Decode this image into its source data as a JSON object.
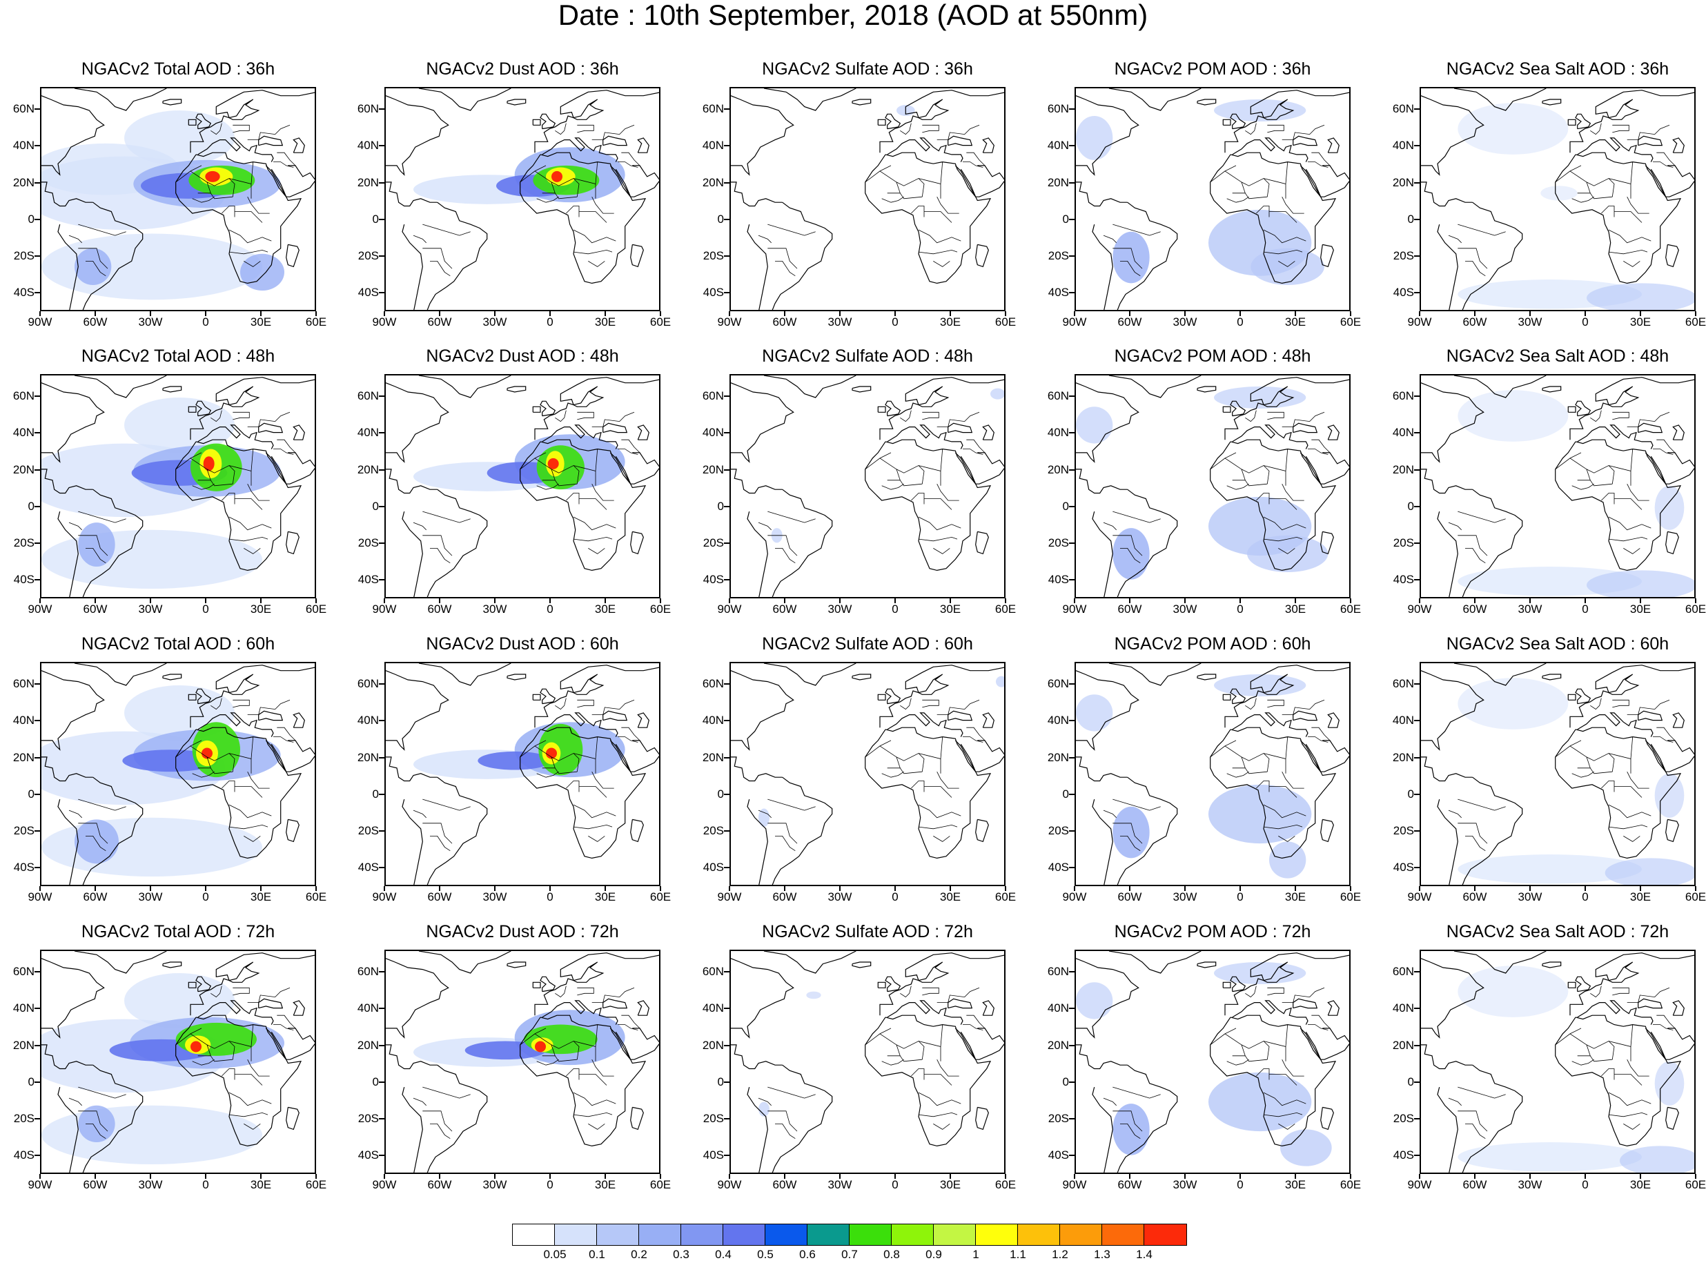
{
  "title": "Date : 10th September, 2018 (AOD at 550nm)",
  "map_axes": {
    "lon_range": [
      -90,
      60
    ],
    "lat_range": [
      -50,
      72
    ],
    "y_ticks": [
      {
        "lat": 60,
        "label": "60N"
      },
      {
        "lat": 40,
        "label": "40N"
      },
      {
        "lat": 20,
        "label": "20N"
      },
      {
        "lat": 0,
        "label": "0"
      },
      {
        "lat": -20,
        "label": "20S"
      },
      {
        "lat": -40,
        "label": "40S"
      }
    ],
    "x_ticks": [
      {
        "lon": -90,
        "label": "90W"
      },
      {
        "lon": -60,
        "label": "60W"
      },
      {
        "lon": -30,
        "label": "30W"
      },
      {
        "lon": 0,
        "label": "0"
      },
      {
        "lon": 30,
        "label": "30E"
      },
      {
        "lon": 60,
        "label": "60E"
      }
    ]
  },
  "panels": [
    {
      "title": "NGACv2 Total AOD : 36h",
      "species": "total",
      "hour": 36
    },
    {
      "title": "NGACv2 Dust AOD : 36h",
      "species": "dust",
      "hour": 36
    },
    {
      "title": "NGACv2 Sulfate AOD : 36h",
      "species": "sulfate",
      "hour": 36
    },
    {
      "title": "NGACv2 POM AOD : 36h",
      "species": "pom",
      "hour": 36
    },
    {
      "title": "NGACv2 Sea Salt AOD : 36h",
      "species": "seasalt",
      "hour": 36
    },
    {
      "title": "NGACv2 Total AOD : 48h",
      "species": "total",
      "hour": 48
    },
    {
      "title": "NGACv2 Dust AOD : 48h",
      "species": "dust",
      "hour": 48
    },
    {
      "title": "NGACv2 Sulfate AOD : 48h",
      "species": "sulfate",
      "hour": 48
    },
    {
      "title": "NGACv2 POM AOD : 48h",
      "species": "pom",
      "hour": 48
    },
    {
      "title": "NGACv2 Sea Salt AOD : 48h",
      "species": "seasalt",
      "hour": 48
    },
    {
      "title": "NGACv2 Total AOD : 60h",
      "species": "total",
      "hour": 60
    },
    {
      "title": "NGACv2 Dust AOD : 60h",
      "species": "dust",
      "hour": 60
    },
    {
      "title": "NGACv2 Sulfate AOD : 60h",
      "species": "sulfate",
      "hour": 60
    },
    {
      "title": "NGACv2 POM AOD : 60h",
      "species": "pom",
      "hour": 60
    },
    {
      "title": "NGACv2 Sea Salt AOD : 60h",
      "species": "seasalt",
      "hour": 60
    },
    {
      "title": "NGACv2 Total AOD : 72h",
      "species": "total",
      "hour": 72
    },
    {
      "title": "NGACv2 Dust AOD : 72h",
      "species": "dust",
      "hour": 72
    },
    {
      "title": "NGACv2 Sulfate AOD : 72h",
      "species": "sulfate",
      "hour": 72
    },
    {
      "title": "NGACv2 POM AOD : 72h",
      "species": "pom",
      "hour": 72
    },
    {
      "title": "NGACv2 Sea Salt  AOD : 72h",
      "species": "seasalt",
      "hour": 72
    }
  ],
  "colorbar": {
    "labels": [
      "0.05",
      "0.1",
      "0.2",
      "0.3",
      "0.4",
      "0.5",
      "0.6",
      "0.7",
      "0.8",
      "0.9",
      "1",
      "1.1",
      "1.2",
      "1.3",
      "1.4"
    ],
    "colors": [
      "#ffffff",
      "#d6e2fb",
      "#b6c8f8",
      "#98aff5",
      "#8197f2",
      "#6375ee",
      "#0a59ec",
      "#0a9a8e",
      "#3bdf0b",
      "#8ef40a",
      "#c3f643",
      "#ffff0b",
      "#fdc10a",
      "#fc9c0a",
      "#fc6a0a",
      "#fc2a0a"
    ]
  }
}
